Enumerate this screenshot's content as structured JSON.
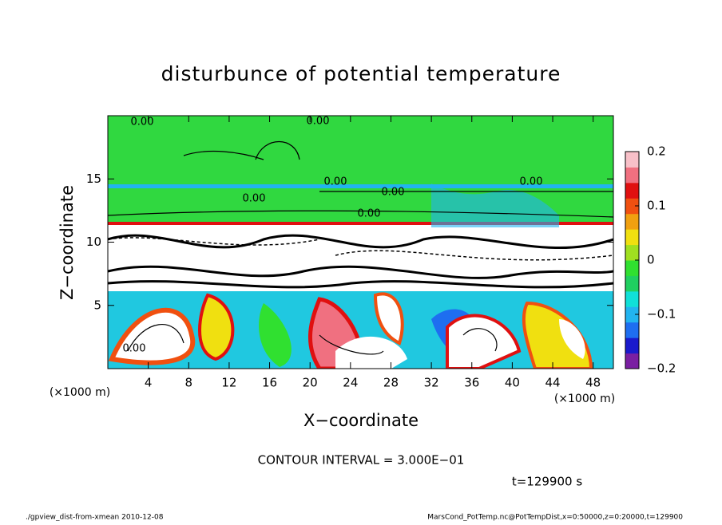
{
  "chart_data": {
    "type": "contour",
    "title": "disturbunce of potential temperature",
    "xlabel": "X−coordinate",
    "ylabel": "Z−coordinate",
    "x_units": "(×1000 m)",
    "y_units": "(×1000 m)",
    "xlim": [
      0,
      50
    ],
    "ylim": [
      0,
      20
    ],
    "xticks": [
      4,
      8,
      12,
      16,
      20,
      24,
      28,
      32,
      36,
      40,
      44,
      48
    ],
    "yticks": [
      5,
      10,
      15
    ],
    "contour_interval": "CONTOUR INTERVAL = 3.000E−01",
    "time_label": "t=129900 s",
    "contour_labels": [
      "0.00",
      "0.00",
      "0.00",
      "0.00",
      "0.00",
      "0.00",
      "0.00",
      "0.00"
    ],
    "colorbar": {
      "lim": [
        -0.2,
        0.2
      ],
      "ticks": [
        {
          "value": -0.2,
          "label": "−0.2"
        },
        {
          "value": -0.1,
          "label": "−0.1"
        },
        0,
        0.1,
        0.2
      ],
      "colors": [
        "#7a1fa2",
        "#1a1acc",
        "#1e6ef0",
        "#22b4f0",
        "#10e0d8",
        "#20d060",
        "#30e030",
        "#a0e020",
        "#f0e010",
        "#f0a010",
        "#f05010",
        "#e01010",
        "#f07080",
        "#f8c0c8"
      ]
    }
  },
  "footer": {
    "left": "./gpview_dist-from-xmean  2010-12-08",
    "right": "MarsCond_PotTemp.nc@PotTempDist,x=0:50000,z=0:20000,t=129900"
  }
}
